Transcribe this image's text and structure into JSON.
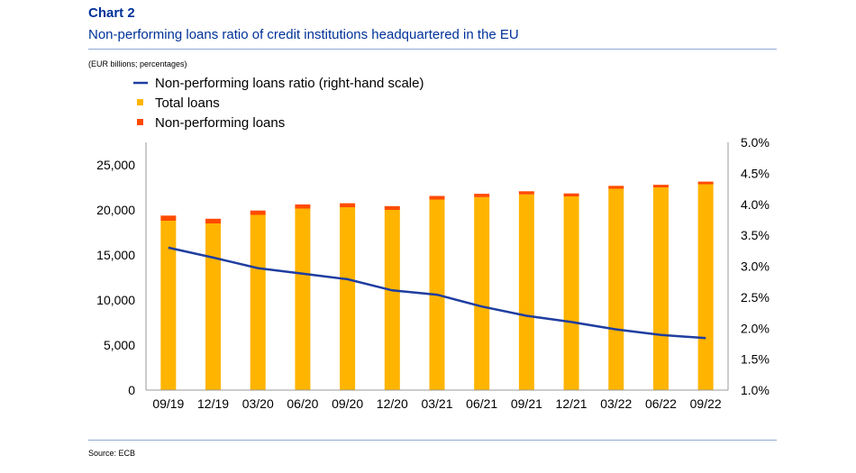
{
  "header": {
    "chart_label": "Chart 2",
    "title": "Non-performing loans ratio of credit institutions headquartered in the EU",
    "units": "(EUR billions; percentages)"
  },
  "footer": {
    "source": "Source: ECB"
  },
  "colors": {
    "total_loans": "#FFB400",
    "non_performing_loans": "#FF4B00",
    "npl_ratio_line": "#1F3DA0",
    "axis": "#999999",
    "title": "#003299"
  },
  "chart_data": {
    "type": "bar",
    "title": "Non-performing loans ratio of credit institutions headquartered in the EU",
    "categories": [
      "09/19",
      "12/19",
      "03/20",
      "06/20",
      "09/20",
      "12/20",
      "03/21",
      "06/21",
      "09/21",
      "12/21",
      "03/22",
      "06/22",
      "09/22"
    ],
    "series": [
      {
        "name": "Total loans",
        "kind": "bar-stack-base",
        "axis": "left",
        "values": [
          18800,
          18500,
          19450,
          20150,
          20300,
          20000,
          21150,
          21420,
          21720,
          21500,
          22350,
          22500,
          22850
        ]
      },
      {
        "name": "Non-performing loans",
        "kind": "bar-stack-top",
        "axis": "left",
        "values": [
          570,
          520,
          480,
          460,
          440,
          420,
          400,
          370,
          350,
          330,
          320,
          290,
          290
        ]
      },
      {
        "name": "Non-performing loans ratio (right-hand scale)",
        "kind": "line",
        "axis": "right",
        "values": [
          3.3,
          3.14,
          2.97,
          2.88,
          2.79,
          2.61,
          2.54,
          2.35,
          2.2,
          2.1,
          1.98,
          1.89,
          1.84
        ]
      }
    ],
    "left_axis": {
      "ylim": [
        0,
        27500
      ],
      "ticks": [
        0,
        5000,
        10000,
        15000,
        20000,
        25000
      ],
      "tick_labels": [
        "0",
        "5,000",
        "10,000",
        "15,000",
        "20,000",
        "25,000"
      ]
    },
    "right_axis": {
      "ylim": [
        1.0,
        5.0
      ],
      "ticks": [
        1.0,
        1.5,
        2.0,
        2.5,
        3.0,
        3.5,
        4.0,
        4.5,
        5.0
      ],
      "tick_labels": [
        "1.0%",
        "1.5%",
        "2.0%",
        "2.5%",
        "3.0%",
        "3.5%",
        "4.0%",
        "4.5%",
        "5.0%"
      ]
    },
    "legend": {
      "placement": "top-left",
      "entries": [
        "Non-performing loans ratio (right-hand scale)",
        "Total loans",
        "Non-performing loans"
      ]
    },
    "grid": false
  }
}
